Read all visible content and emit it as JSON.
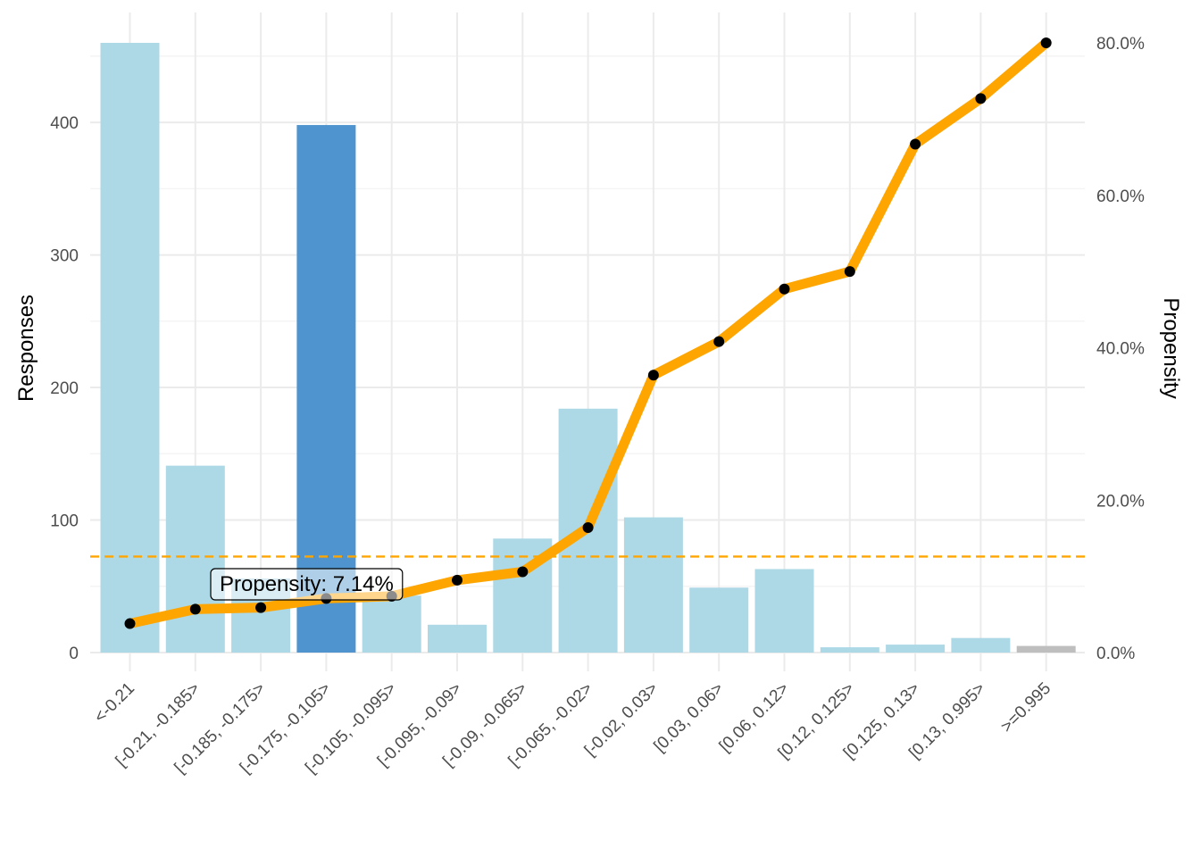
{
  "chart_data": {
    "type": "bar",
    "categories": [
      "<-0.21",
      "[-0.21, -0.185>",
      "[-0.185, -0.175>",
      "[-0.175, -0.105>",
      "[-0.105, -0.095>",
      "[-0.095, -0.09>",
      "[-0.09, -0.065>",
      "[-0.065, -0.02>",
      "[-0.02, 0.03>",
      "[0.03, 0.06>",
      "[0.06, 0.12>",
      "[0.12, 0.125>",
      "[0.125, 0.13>",
      "[0.13, 0.995>",
      ">=0.995"
    ],
    "series": [
      {
        "kind": "bar",
        "axis": "left",
        "values": [
          460,
          141,
          56,
          398,
          43,
          21,
          86,
          184,
          102,
          49,
          63,
          4,
          6,
          11,
          5
        ],
        "colors": [
          "#add8e6",
          "#add8e6",
          "#add8e6",
          "#4f94cf",
          "#add8e6",
          "#add8e6",
          "#add8e6",
          "#add8e6",
          "#add8e6",
          "#add8e6",
          "#add8e6",
          "#add8e6",
          "#add8e6",
          "#add8e6",
          "#bebebe"
        ]
      },
      {
        "kind": "line",
        "axis": "right",
        "values": [
          3.8,
          5.7,
          5.9,
          7.1,
          7.4,
          9.5,
          10.6,
          16.4,
          36.4,
          40.8,
          47.7,
          50.0,
          66.7,
          72.7,
          80.0
        ],
        "color": "#ffa500"
      }
    ],
    "reference_line": {
      "axis": "right",
      "value": 12.6,
      "style": "dashed",
      "color": "#ffa500"
    },
    "ylabel": "Responses",
    "ylabel_right": "Propensity",
    "xlabel": "",
    "ylim": [
      0,
      460
    ],
    "yticks": [
      0,
      100,
      200,
      300,
      400
    ],
    "y2lim": [
      0,
      80
    ],
    "y2ticks": [
      0,
      20,
      40,
      60,
      80
    ],
    "y2tick_labels": [
      "0.0%",
      "20.0%",
      "40.0%",
      "60.0%",
      "80.0%"
    ],
    "grid": true,
    "legend": "none",
    "tooltip": {
      "text": "Propensity: 7.14%",
      "category_index": 3
    }
  }
}
